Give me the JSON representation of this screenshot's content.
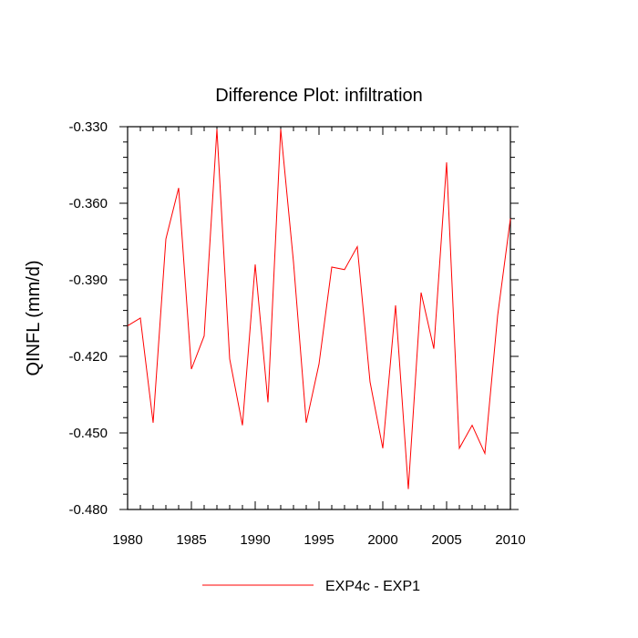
{
  "chart_data": {
    "type": "line",
    "title": "Difference Plot: infiltration",
    "xlabel": "",
    "ylabel": "QINFL  (mm/d)",
    "xlim": [
      1980,
      2010
    ],
    "ylim": [
      -0.48,
      -0.33
    ],
    "x_ticks": [
      1980,
      1985,
      1990,
      1995,
      2000,
      2005,
      2010
    ],
    "x_tick_labels": [
      "1980",
      "1985",
      "1990",
      "1995",
      "2000",
      "2005",
      "2010"
    ],
    "y_ticks": [
      -0.33,
      -0.36,
      -0.39,
      -0.42,
      -0.45,
      -0.48
    ],
    "y_tick_labels": [
      "-0.330",
      "-0.360",
      "-0.390",
      "-0.420",
      "-0.450",
      "-0.480"
    ],
    "grid": false,
    "legend_position": "bottom",
    "series": [
      {
        "name": "EXP4c - EXP1",
        "color": "#ff0000",
        "x": [
          1980,
          1981,
          1982,
          1983,
          1984,
          1985,
          1986,
          1987,
          1988,
          1989,
          1990,
          1991,
          1992,
          1993,
          1994,
          1995,
          1996,
          1997,
          1998,
          1999,
          2000,
          2001,
          2002,
          2003,
          2004,
          2005,
          2006,
          2007,
          2008,
          2009,
          2010
        ],
        "y": [
          -0.408,
          -0.405,
          -0.446,
          -0.374,
          -0.354,
          -0.425,
          -0.412,
          -0.331,
          -0.421,
          -0.447,
          -0.384,
          -0.438,
          -0.331,
          -0.383,
          -0.446,
          -0.423,
          -0.385,
          -0.386,
          -0.377,
          -0.43,
          -0.456,
          -0.4,
          -0.472,
          -0.395,
          -0.417,
          -0.344,
          -0.456,
          -0.447,
          -0.458,
          -0.404,
          -0.366
        ]
      }
    ]
  }
}
